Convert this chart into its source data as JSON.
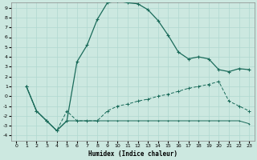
{
  "xlabel": "Humidex (Indice chaleur)",
  "xlim": [
    -0.5,
    23.5
  ],
  "ylim": [
    -4.5,
    9.5
  ],
  "xticks": [
    0,
    1,
    2,
    3,
    4,
    5,
    6,
    7,
    8,
    9,
    10,
    11,
    12,
    13,
    14,
    15,
    16,
    17,
    18,
    19,
    20,
    21,
    22,
    23
  ],
  "yticks": [
    -4,
    -3,
    -2,
    -1,
    0,
    1,
    2,
    3,
    4,
    5,
    6,
    7,
    8,
    9
  ],
  "bg_color": "#cce8e0",
  "line_color": "#1a6b5a",
  "grid_color": "#b0d8d0",
  "line1_x": [
    1,
    2,
    3,
    4,
    5,
    6,
    7,
    8,
    9,
    10,
    11,
    12,
    13,
    14,
    15,
    16,
    17,
    18,
    19,
    20,
    21,
    22,
    23
  ],
  "line1_y": [
    1,
    -1.5,
    -2.5,
    -3.5,
    -2.5,
    3.5,
    5.2,
    7.8,
    9.5,
    9.7,
    9.5,
    9.4,
    8.8,
    7.7,
    6.2,
    4.5,
    3.8,
    4.0,
    3.8,
    2.7,
    2.5,
    2.8,
    2.7
  ],
  "line2_x": [
    1,
    2,
    3,
    4,
    5,
    6,
    7,
    8,
    9,
    10,
    11,
    12,
    13,
    14,
    15,
    16,
    17,
    18,
    19,
    20,
    21,
    22,
    23
  ],
  "line2_y": [
    1,
    -1.5,
    -2.5,
    -3.5,
    -1.5,
    -2.5,
    -2.5,
    -2.5,
    -1.5,
    -1.0,
    -0.8,
    -0.5,
    -0.3,
    0.0,
    0.2,
    0.5,
    0.8,
    1.0,
    1.2,
    1.5,
    -0.5,
    -1.0,
    -1.5
  ],
  "line3_x": [
    1,
    2,
    3,
    4,
    5,
    6,
    7,
    8,
    9,
    10,
    11,
    12,
    13,
    14,
    15,
    16,
    17,
    18,
    19,
    20,
    21,
    22,
    23
  ],
  "line3_y": [
    1,
    -1.5,
    -2.5,
    -3.5,
    -2.5,
    -2.5,
    -2.5,
    -2.5,
    -2.5,
    -2.5,
    -2.5,
    -2.5,
    -2.5,
    -2.5,
    -2.5,
    -2.5,
    -2.5,
    -2.5,
    -2.5,
    -2.5,
    -2.5,
    -2.5,
    -2.8
  ]
}
